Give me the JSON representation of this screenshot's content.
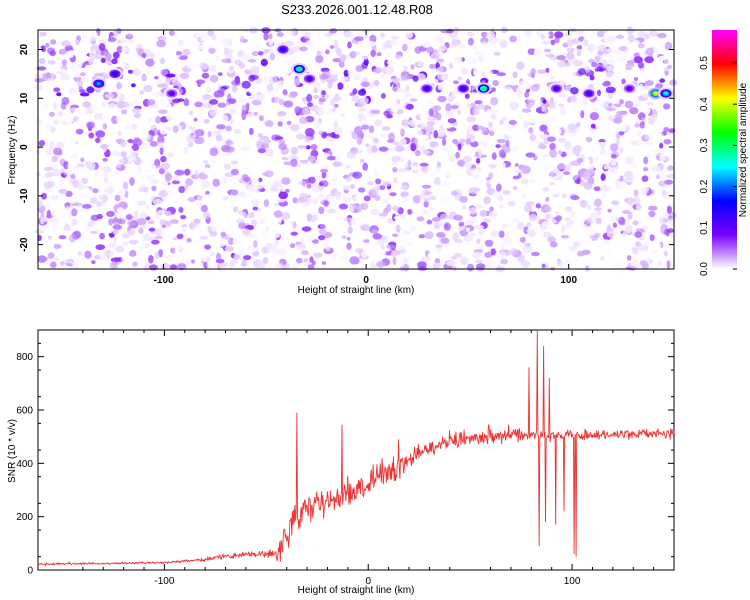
{
  "title": "S233.2026.001.12.48.R08",
  "chart_data": [
    {
      "type": "heatmap",
      "xlabel": "Height of straight line (km)",
      "ylabel": "Frequency (Hz)",
      "xlim": [
        -162,
        152
      ],
      "ylim": [
        -25,
        24
      ],
      "xticks": [
        -100,
        0,
        100
      ],
      "yticks": [
        -20,
        -10,
        0,
        10,
        20
      ],
      "colorbar": {
        "label": "Normalized spectral amplitude",
        "range": [
          0,
          0.58
        ],
        "ticks": [
          "0.0",
          "0.1",
          "0.2",
          "0.3",
          "0.4",
          "0.5"
        ],
        "colors": [
          "#ffffff",
          "#7a00ff",
          "#0000ff",
          "#00ffff",
          "#00ff00",
          "#ffff00",
          "#ff0000",
          "#ff00ff"
        ]
      },
      "hotspots": [
        {
          "x": -132,
          "y": 13,
          "value": 0.22
        },
        {
          "x": -124,
          "y": 15,
          "value": 0.15
        },
        {
          "x": -96,
          "y": 11,
          "value": 0.1
        },
        {
          "x": -41,
          "y": 20,
          "value": 0.14
        },
        {
          "x": -33,
          "y": 16,
          "value": 0.28
        },
        {
          "x": -28,
          "y": 14,
          "value": 0.12
        },
        {
          "x": 30,
          "y": 12,
          "value": 0.13
        },
        {
          "x": 48,
          "y": 12,
          "value": 0.14
        },
        {
          "x": 58,
          "y": 12,
          "value": 0.3
        },
        {
          "x": 94,
          "y": 12,
          "value": 0.12
        },
        {
          "x": 110,
          "y": 11,
          "value": 0.13
        },
        {
          "x": 130,
          "y": 12,
          "value": 0.1
        },
        {
          "x": 143,
          "y": 11,
          "value": 0.42
        },
        {
          "x": 148,
          "y": 11,
          "value": 0.25
        }
      ]
    },
    {
      "type": "line",
      "xlabel": "Height of straight line (km)",
      "ylabel": "SNR (10 * v/v)",
      "xlim": [
        -162,
        150
      ],
      "ylim": [
        0,
        900
      ],
      "xticks": [
        -100,
        0,
        100
      ],
      "yticks": [
        0,
        200,
        400,
        600,
        800
      ],
      "color": "#ee3333",
      "trend": [
        {
          "x": -162,
          "y": 22
        },
        {
          "x": -120,
          "y": 25
        },
        {
          "x": -100,
          "y": 28
        },
        {
          "x": -80,
          "y": 40
        },
        {
          "x": -60,
          "y": 60
        },
        {
          "x": -45,
          "y": 60
        },
        {
          "x": -38,
          "y": 170
        },
        {
          "x": -30,
          "y": 230
        },
        {
          "x": -20,
          "y": 260
        },
        {
          "x": -10,
          "y": 285
        },
        {
          "x": 0,
          "y": 320
        },
        {
          "x": 10,
          "y": 370
        },
        {
          "x": 20,
          "y": 420
        },
        {
          "x": 30,
          "y": 460
        },
        {
          "x": 40,
          "y": 485
        },
        {
          "x": 50,
          "y": 500
        },
        {
          "x": 60,
          "y": 505
        },
        {
          "x": 70,
          "y": 505
        },
        {
          "x": 80,
          "y": 510
        },
        {
          "x": 90,
          "y": 505
        },
        {
          "x": 100,
          "y": 505
        },
        {
          "x": 110,
          "y": 505
        },
        {
          "x": 120,
          "y": 510
        },
        {
          "x": 135,
          "y": 510
        },
        {
          "x": 150,
          "y": 510
        }
      ],
      "peaks": [
        {
          "x": -35,
          "y": 590
        },
        {
          "x": -13,
          "y": 545
        },
        {
          "x": 15,
          "y": 490
        },
        {
          "x": 79,
          "y": 760
        },
        {
          "x": 83,
          "y": 900
        },
        {
          "x": 86,
          "y": 840
        },
        {
          "x": 89,
          "y": 720
        },
        {
          "x": 101,
          "y": 780
        },
        {
          "x": 102,
          "y": 850
        }
      ],
      "troughs": [
        {
          "x": 84,
          "y": 90
        },
        {
          "x": 87,
          "y": 180
        },
        {
          "x": 92,
          "y": 170
        },
        {
          "x": 96,
          "y": 220
        },
        {
          "x": 101,
          "y": 60
        },
        {
          "x": 102,
          "y": 50
        }
      ]
    }
  ]
}
